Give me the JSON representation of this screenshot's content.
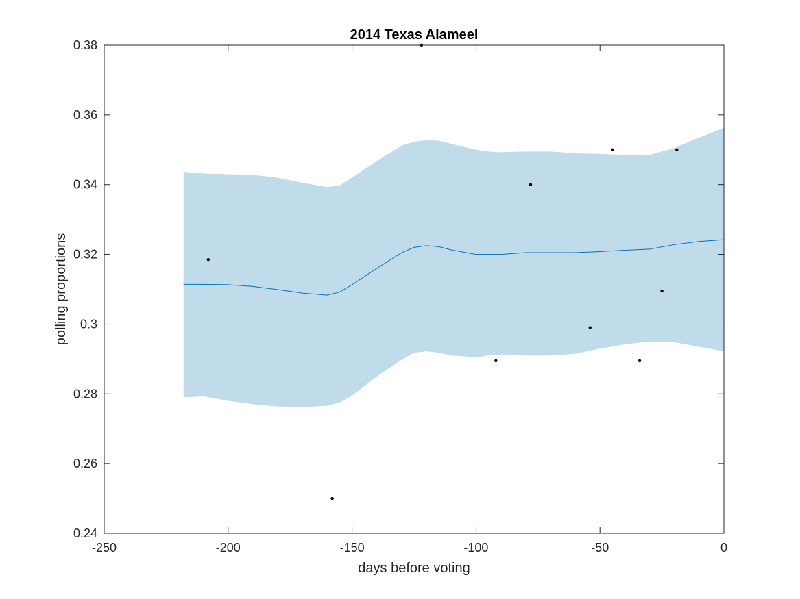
{
  "chart_data": {
    "type": "line",
    "title": "2014 Texas Alameel",
    "xlabel": "days before voting",
    "ylabel": "polling proportions",
    "xlim": [
      -250,
      0
    ],
    "ylim": [
      0.24,
      0.38
    ],
    "x_ticks": [
      -250,
      -200,
      -150,
      -100,
      -50,
      0
    ],
    "x_tick_labels": [
      "-250",
      "-200",
      "-150",
      "-100",
      "-50",
      "0"
    ],
    "y_ticks": [
      0.24,
      0.26,
      0.28,
      0.3,
      0.32,
      0.34,
      0.36,
      0.38
    ],
    "y_tick_labels": [
      "0.24",
      "0.26",
      "0.28",
      "0.3",
      "0.32",
      "0.34",
      "0.36",
      "0.38"
    ],
    "grid": false,
    "colors": {
      "band": "#c0dcea",
      "line": "#0072bd",
      "points": "#000000",
      "axes": "#262626"
    },
    "series": [
      {
        "type": "line",
        "x": [
          -218,
          -210,
          -200,
          -190,
          -180,
          -170,
          -160,
          -155,
          -150,
          -140,
          -130,
          -125,
          -120,
          -115,
          -110,
          -100,
          -95,
          -90,
          -80,
          -70,
          -60,
          -50,
          -40,
          -30,
          -20,
          -10,
          0
        ],
        "values": [
          0.3114,
          0.3114,
          0.3113,
          0.3108,
          0.3099,
          0.3089,
          0.3083,
          0.3092,
          0.3113,
          0.316,
          0.3205,
          0.322,
          0.3225,
          0.3222,
          0.3213,
          0.32,
          0.32,
          0.32,
          0.3205,
          0.3205,
          0.3205,
          0.3208,
          0.3212,
          0.3215,
          0.3228,
          0.3237,
          0.3242
        ]
      },
      {
        "type": "band",
        "x": [
          -218,
          -210,
          -200,
          -190,
          -180,
          -170,
          -160,
          -155,
          -150,
          -140,
          -130,
          -125,
          -120,
          -115,
          -110,
          -100,
          -95,
          -90,
          -80,
          -70,
          -60,
          -50,
          -40,
          -30,
          -20,
          -10,
          0
        ],
        "upper": [
          0.3437,
          0.3432,
          0.343,
          0.3428,
          0.342,
          0.3405,
          0.3393,
          0.3398,
          0.342,
          0.3468,
          0.3512,
          0.3523,
          0.3528,
          0.3526,
          0.3517,
          0.35,
          0.3495,
          0.3493,
          0.3495,
          0.3495,
          0.349,
          0.3488,
          0.3485,
          0.3485,
          0.3505,
          0.3535,
          0.3563
        ],
        "lower": [
          0.279,
          0.2793,
          0.278,
          0.277,
          0.2764,
          0.2762,
          0.2766,
          0.2775,
          0.2795,
          0.285,
          0.2898,
          0.2918,
          0.2922,
          0.2918,
          0.291,
          0.2905,
          0.291,
          0.2913,
          0.291,
          0.291,
          0.2915,
          0.293,
          0.2942,
          0.295,
          0.2948,
          0.2935,
          0.2922
        ]
      },
      {
        "type": "scatter",
        "x": [
          -208,
          -158,
          -122,
          -92,
          -78,
          -54,
          -45,
          -34,
          -25,
          -19
        ],
        "values": [
          0.3185,
          0.25,
          0.38,
          0.2895,
          0.34,
          0.299,
          0.35,
          0.2895,
          0.3095,
          0.35
        ]
      }
    ]
  }
}
